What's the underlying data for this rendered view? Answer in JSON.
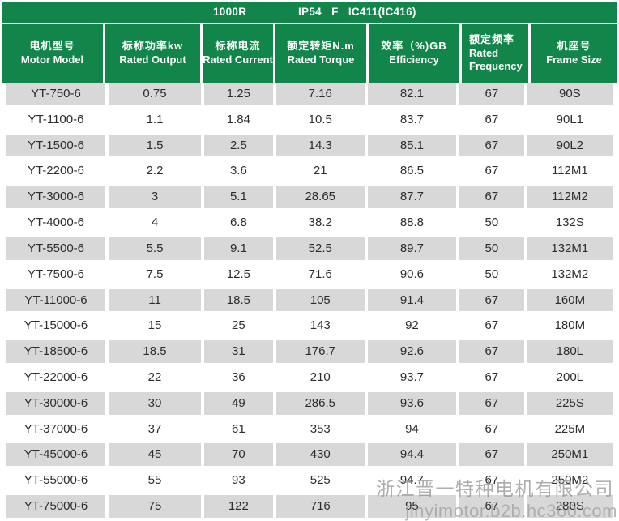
{
  "topbar": {
    "rated_speed": "1000R",
    "protection_spec": "IP54   F   IC411(IC416)"
  },
  "table": {
    "columns": [
      {
        "zh": "电机型号",
        "en": "Motor Model"
      },
      {
        "zh": "标称功率kw",
        "en": "Rated Output"
      },
      {
        "zh": "标称电流",
        "en": "Rated Current"
      },
      {
        "zh": "额定转矩N.m",
        "en": "Rated Torque"
      },
      {
        "zh": "效率（%)GB",
        "en": "Efficiency"
      },
      {
        "zh": "额定频率",
        "en": "Rated Frequency"
      },
      {
        "zh": "机座号",
        "en": "Frame Size"
      }
    ],
    "rows": [
      [
        "YT-750-6",
        "0.75",
        "1.25",
        "7.16",
        "82.1",
        "67",
        "90S"
      ],
      [
        "YT-1100-6",
        "1.1",
        "1.84",
        "10.5",
        "83.7",
        "67",
        "90L1"
      ],
      [
        "YT-1500-6",
        "1.5",
        "2.5",
        "14.3",
        "85.1",
        "67",
        "90L2"
      ],
      [
        "YT-2200-6",
        "2.2",
        "3.6",
        "21",
        "86.5",
        "67",
        "112M1"
      ],
      [
        "YT-3000-6",
        "3",
        "5.1",
        "28.65",
        "87.7",
        "67",
        "112M2"
      ],
      [
        "YT-4000-6",
        "4",
        "6.8",
        "38.2",
        "88.8",
        "50",
        "132S"
      ],
      [
        "YT-5500-6",
        "5.5",
        "9.1",
        "52.5",
        "89.7",
        "50",
        "132M1"
      ],
      [
        "YT-7500-6",
        "7.5",
        "12.5",
        "71.6",
        "90.6",
        "50",
        "132M2"
      ],
      [
        "YT-11000-6",
        "11",
        "18.5",
        "105",
        "91.4",
        "67",
        "160M"
      ],
      [
        "YT-15000-6",
        "15",
        "25",
        "143",
        "92",
        "67",
        "180M"
      ],
      [
        "YT-18500-6",
        "18.5",
        "31",
        "176.7",
        "92.6",
        "67",
        "180L"
      ],
      [
        "YT-22000-6",
        "22",
        "36",
        "210",
        "93.7",
        "67",
        "200L"
      ],
      [
        "YT-30000-6",
        "30",
        "49",
        "286.5",
        "93.6",
        "67",
        "225S"
      ],
      [
        "YT-37000-6",
        "37",
        "61",
        "353",
        "94",
        "67",
        "225M"
      ],
      [
        "YT-45000-6",
        "45",
        "70",
        "430",
        "94.4",
        "67",
        "250M1"
      ],
      [
        "YT-55000-6",
        "55",
        "93",
        "525",
        "94.7",
        "67",
        "250M2"
      ],
      [
        "YT-75000-6",
        "75",
        "122",
        "716",
        "95",
        "67",
        "280S"
      ]
    ]
  },
  "watermark": {
    "company": "浙江晋一特种电机有限公司",
    "url": "jinyimotor.b2b.hc360.com"
  },
  "colors": {
    "header_green": "#12854a",
    "stripe_gray": "#d8d8d8",
    "text_dark": "#2d2d2d",
    "watermark_gray": "#9e9e9e"
  }
}
